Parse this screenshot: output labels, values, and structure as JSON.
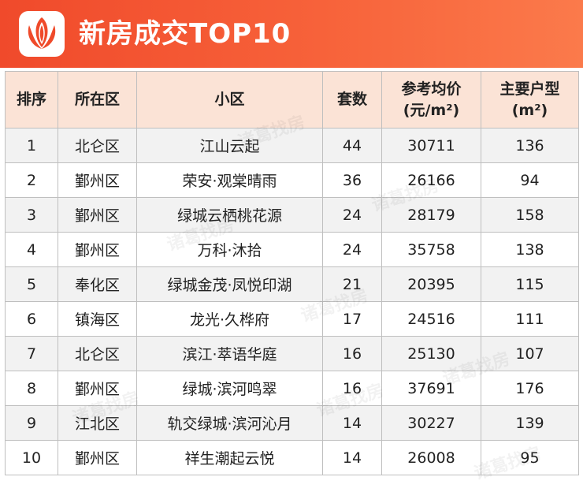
{
  "banner": {
    "title": "新房成交TOP10"
  },
  "table": {
    "headers": {
      "rank": "排序",
      "district": "所在区",
      "community": "小区",
      "units": "套数",
      "price_line1": "参考均价",
      "price_line2": "(元/m²)",
      "type_line1": "主要户型",
      "type_line2": "(m²)"
    },
    "rows": [
      {
        "rank": "1",
        "district": "北仑区",
        "community": "江山云起",
        "units": "44",
        "price": "30711",
        "type": "136"
      },
      {
        "rank": "2",
        "district": "鄞州区",
        "community": "荣安·观棠晴雨",
        "units": "36",
        "price": "26166",
        "type": "94"
      },
      {
        "rank": "3",
        "district": "鄞州区",
        "community": "绿城云栖桃花源",
        "units": "24",
        "price": "28179",
        "type": "158"
      },
      {
        "rank": "4",
        "district": "鄞州区",
        "community": "万科·沐拾",
        "units": "24",
        "price": "35758",
        "type": "138"
      },
      {
        "rank": "5",
        "district": "奉化区",
        "community": "绿城金茂·凤悦印湖",
        "units": "21",
        "price": "20395",
        "type": "115"
      },
      {
        "rank": "6",
        "district": "镇海区",
        "community": "龙光·久桦府",
        "units": "17",
        "price": "24516",
        "type": "111"
      },
      {
        "rank": "7",
        "district": "北仑区",
        "community": "滨江·萃语华庭",
        "units": "16",
        "price": "25130",
        "type": "107"
      },
      {
        "rank": "8",
        "district": "鄞州区",
        "community": "绿城·滨河鸣翠",
        "units": "16",
        "price": "37691",
        "type": "176"
      },
      {
        "rank": "9",
        "district": "江北区",
        "community": "轨交绿城·滨河沁月",
        "units": "14",
        "price": "30227",
        "type": "139"
      },
      {
        "rank": "10",
        "district": "鄞州区",
        "community": "祥生潮起云悦",
        "units": "14",
        "price": "26008",
        "type": "95"
      }
    ]
  },
  "watermark": {
    "text": "诸葛找房"
  },
  "colors": {
    "banner": "#f04a2b",
    "header_bg": "#fbe3d6",
    "row_alt": "#f2f2f2"
  }
}
